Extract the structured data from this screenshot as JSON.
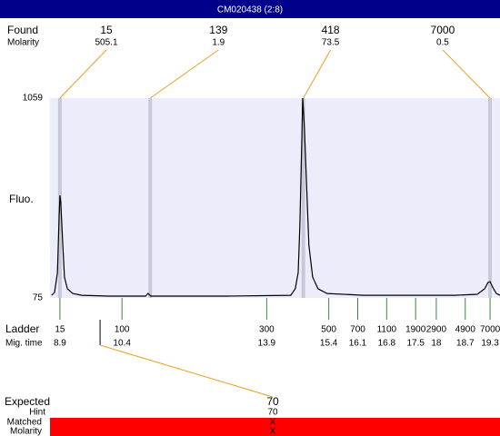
{
  "chart_data": {
    "type": "electropherogram",
    "title": "CM020438 (2:8)",
    "found_label": "Found",
    "molarity_label": "Molarity",
    "y_label": "Fluo.",
    "ylim": [
      75,
      1059
    ],
    "yticks": [
      75,
      1059
    ],
    "xlim": [
      8.66,
      19.54
    ],
    "plot_color": "#ececfa",
    "trace_color": "#000000",
    "marker_color": "#c8c8d8",
    "connector_color": "#e8a020",
    "ladder_color": "#3a8a3a",
    "found": {
      "sizes": [
        15,
        139,
        418,
        7000
      ],
      "molarity": [
        505.1,
        1.9,
        73.5,
        0.5
      ]
    },
    "ladder": {
      "label": "Ladder",
      "time_label": "Mig. time",
      "sizes": [
        15,
        100,
        300,
        500,
        700,
        1100,
        1900,
        2900,
        4900,
        7000
      ],
      "times": [
        8.9,
        10.4,
        13.9,
        15.4,
        16.1,
        16.8,
        17.5,
        18,
        18.7,
        19.3
      ]
    },
    "trace": {
      "x": [
        8.7,
        8.77,
        8.84,
        8.88,
        8.9,
        8.92,
        8.97,
        9.01,
        9.08,
        9.21,
        9.43,
        10.09,
        10.97,
        11.03,
        11.1,
        12.95,
        14.48,
        14.59,
        14.66,
        14.7,
        14.75,
        14.77,
        14.81,
        14.86,
        14.92,
        15.01,
        15.14,
        15.36,
        16.24,
        18.44,
        18.99,
        19.17,
        19.25,
        19.3,
        19.36,
        19.45,
        19.54
      ],
      "values": [
        88,
        102,
        200,
        469,
        580,
        549,
        334,
        178,
        120,
        97,
        88,
        84,
        84,
        97,
        84,
        84,
        88,
        120,
        200,
        424,
        871,
        1059,
        916,
        647,
        334,
        178,
        120,
        97,
        88,
        88,
        93,
        120,
        151,
        155,
        129,
        97,
        88
      ]
    },
    "expected": {
      "label": "Expected",
      "value": 70,
      "hint_label": "Hint",
      "hint": 70,
      "matched_label": "Matched",
      "matched": "X",
      "molarity_label": "Molarity",
      "molarity": "X",
      "bar_color": "#ff0000"
    }
  }
}
